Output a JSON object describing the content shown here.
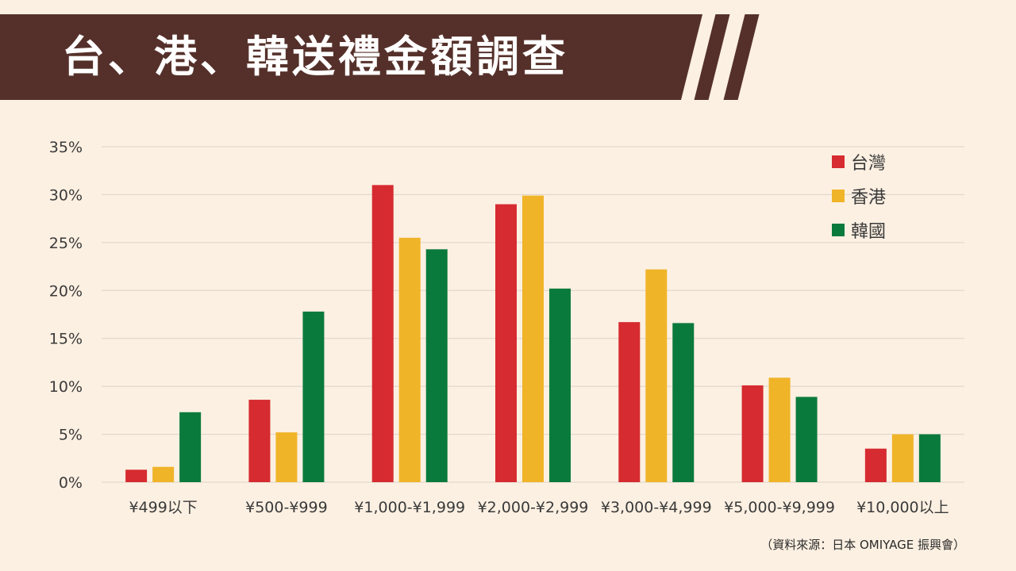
{
  "header": {
    "title": "台、港、韓送禮金額調查"
  },
  "source": "（資料來源：日本 OMIYAGE 振興會）",
  "chart_data": {
    "type": "bar",
    "title": "台、港、韓送禮金額調查",
    "xlabel": "",
    "ylabel": "",
    "categories": [
      "¥499以下",
      "¥500-¥999",
      "¥1,000-¥1,999",
      "¥2,000-¥2,999",
      "¥3,000-¥4,999",
      "¥5,000-¥9,999",
      "¥10,000以上"
    ],
    "series": [
      {
        "name": "台灣",
        "color": "#d62b30",
        "values": [
          1.3,
          8.6,
          31.0,
          29.0,
          16.7,
          10.1,
          3.5
        ]
      },
      {
        "name": "香港",
        "color": "#f0b429",
        "values": [
          1.6,
          5.2,
          25.5,
          29.9,
          22.2,
          10.9,
          5.0
        ]
      },
      {
        "name": "韓國",
        "color": "#0a7a3c",
        "values": [
          7.3,
          17.8,
          24.3,
          20.2,
          16.6,
          8.9,
          5.0
        ]
      }
    ],
    "ylim": [
      0,
      35
    ],
    "yticks": [
      "0%",
      "5%",
      "10%",
      "15%",
      "20%",
      "25%",
      "30%",
      "35%"
    ],
    "grid": true,
    "legend_position": "top-right"
  }
}
